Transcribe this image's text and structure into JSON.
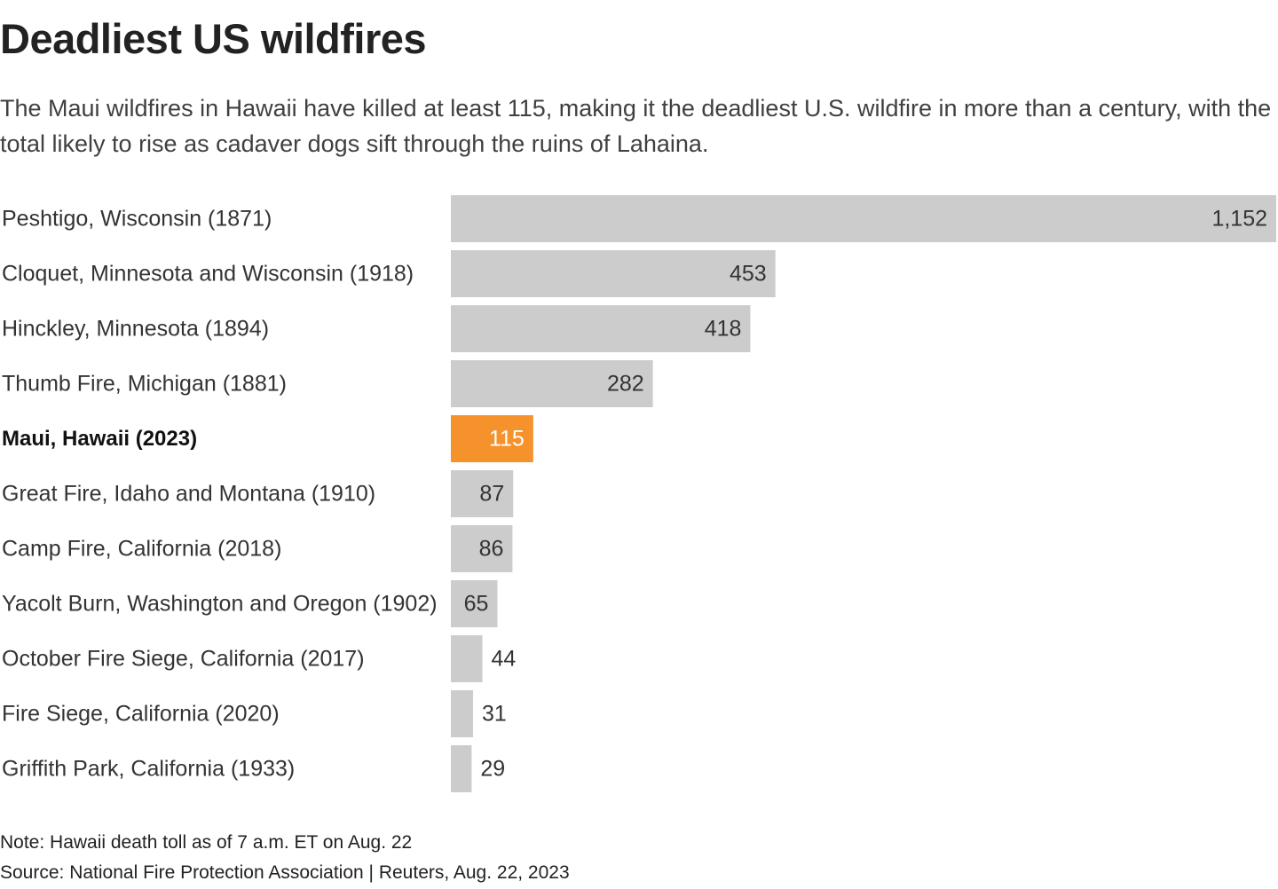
{
  "header": {
    "title": "Deadliest US wildfires",
    "subtitle": "The Maui wildfires in Hawaii have killed at least 115, making it the deadliest U.S. wildfire in more than a century, with the total likely to rise as cadaver dogs sift through the ruins of Lahaina."
  },
  "footer": {
    "note": "Note: Hawaii death toll as of 7 a.m. ET on Aug. 22",
    "source": "Source: National Fire Protection Association | Reuters, Aug. 22, 2023"
  },
  "colors": {
    "bar": "#cccccc",
    "highlight": "#f5922b",
    "label": "#333333",
    "value": "#333333",
    "highlight_value": "#ffffff"
  },
  "chart_data": {
    "type": "bar",
    "orientation": "horizontal",
    "title": "Deadliest US wildfires",
    "xlabel": "",
    "ylabel": "",
    "xlim": [
      0,
      1152
    ],
    "grid": false,
    "highlight_index": 4,
    "categories": [
      "Peshtigo, Wisconsin (1871)",
      "Cloquet, Minnesota and Wisconsin (1918)",
      "Hinckley, Minnesota (1894)",
      "Thumb Fire, Michigan (1881)",
      "Maui, Hawaii (2023)",
      "Great Fire, Idaho and Montana (1910)",
      "Camp Fire, California (2018)",
      "Yacolt Burn, Washington and Oregon (1902)",
      "October Fire Siege, California (2017)",
      "Fire Siege, California (2020)",
      "Griffith Park, California (1933)"
    ],
    "values": [
      1152,
      453,
      418,
      282,
      115,
      87,
      86,
      65,
      44,
      31,
      29
    ],
    "value_labels": [
      "1,152",
      "453",
      "418",
      "282",
      "115",
      "87",
      "86",
      "65",
      "44",
      "31",
      "29"
    ]
  }
}
